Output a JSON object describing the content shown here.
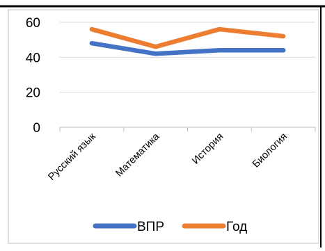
{
  "chart_data": {
    "type": "line",
    "categories": [
      "Русский язык",
      "Математика",
      "История",
      "Биология"
    ],
    "series": [
      {
        "name": "ВПР",
        "values": [
          48,
          42,
          44,
          44
        ],
        "color": "#4472C4"
      },
      {
        "name": "Год",
        "values": [
          56,
          46,
          56,
          52
        ],
        "color": "#ED7D31"
      }
    ],
    "ylim": [
      0,
      60
    ],
    "yticks": [
      0,
      20,
      40,
      60
    ],
    "grid": true,
    "legend_position": "bottom",
    "title": "",
    "xlabel": "",
    "ylabel": ""
  }
}
